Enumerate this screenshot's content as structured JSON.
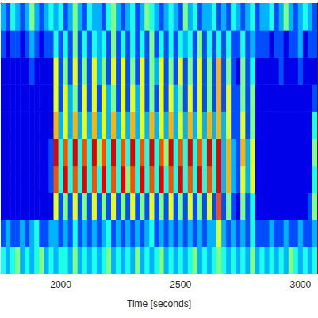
{
  "chart_data": {
    "type": "heatmap",
    "x_label": "Time [seconds]",
    "xlim": [
      1750,
      3070
    ],
    "xticks": [
      2000,
      2500,
      3000
    ],
    "ylim": [
      0,
      10
    ],
    "tick_labels": "x",
    "grid": false,
    "color_range": [
      0,
      10
    ],
    "bins": [
      1750,
      1770,
      1790,
      1810,
      1830,
      1850,
      1870,
      1890,
      1910,
      1930,
      1950,
      1970,
      1990,
      2010,
      2030,
      2050,
      2070,
      2090,
      2110,
      2130,
      2150,
      2170,
      2190,
      2210,
      2230,
      2250,
      2270,
      2290,
      2310,
      2330,
      2350,
      2370,
      2390,
      2410,
      2430,
      2450,
      2470,
      2490,
      2510,
      2530,
      2550,
      2570,
      2590,
      2610,
      2630,
      2650,
      2670,
      2690,
      2710,
      2730,
      2750,
      2770,
      2790,
      2810,
      2830,
      2850,
      2870,
      2890,
      2910,
      2930,
      2950,
      2970,
      2990,
      3010,
      3030,
      3050,
      3070
    ],
    "cells": [
      [
        4,
        3,
        4,
        5,
        3,
        4,
        3,
        4,
        5,
        3,
        4,
        3,
        4,
        4,
        3,
        5,
        3,
        4,
        3,
        4,
        3,
        4,
        5,
        3,
        4,
        3,
        4,
        3,
        5,
        3,
        4,
        3,
        4,
        5,
        3,
        4,
        3,
        4,
        3,
        4,
        5,
        3,
        4,
        3,
        4,
        5,
        4,
        3,
        4,
        3,
        4,
        3,
        5,
        3,
        4,
        3,
        4,
        3,
        4,
        3,
        5,
        4,
        3,
        4,
        3,
        4
      ],
      [
        2,
        3,
        2,
        2,
        3,
        2,
        3,
        4,
        2,
        2,
        3,
        3,
        2,
        3,
        2,
        4,
        2,
        3,
        2,
        3,
        2,
        3,
        4,
        2,
        3,
        2,
        3,
        2,
        3,
        2,
        3,
        4,
        2,
        3,
        2,
        3,
        2,
        3,
        2,
        3,
        2,
        3,
        2,
        3,
        3,
        6,
        3,
        2,
        3,
        2,
        3,
        2,
        4,
        2,
        2,
        2,
        3,
        2,
        2,
        3,
        2,
        2,
        3,
        2,
        2,
        3
      ],
      [
        1,
        1,
        1,
        1,
        1,
        1,
        1,
        1,
        1,
        1,
        1,
        6,
        2,
        5,
        2,
        6,
        2,
        5,
        2,
        6,
        2,
        5,
        2,
        6,
        2,
        5,
        2,
        6,
        2,
        5,
        2,
        6,
        2,
        5,
        2,
        6,
        2,
        5,
        2,
        6,
        2,
        5,
        2,
        6,
        2,
        8,
        2,
        5,
        2,
        1,
        5,
        2,
        4,
        1,
        1,
        1,
        1,
        1,
        1,
        1,
        1,
        1,
        1,
        1,
        2,
        5
      ],
      [
        1,
        1,
        1,
        1,
        1,
        1,
        1,
        1,
        1,
        1,
        2,
        8,
        4,
        9,
        4,
        8,
        4,
        9,
        4,
        8,
        4,
        9,
        4,
        8,
        4,
        9,
        5,
        8,
        4,
        9,
        4,
        8,
        4,
        9,
        4,
        8,
        4,
        9,
        4,
        8,
        4,
        9,
        4,
        8,
        4,
        9,
        3,
        7,
        3,
        2,
        6,
        3,
        6,
        1,
        1,
        1,
        1,
        1,
        1,
        1,
        1,
        1,
        1,
        1,
        1,
        4
      ],
      [
        1,
        1,
        1,
        1,
        1,
        1,
        1,
        1,
        1,
        1,
        2,
        9,
        4,
        8,
        4,
        9,
        4,
        8,
        4,
        9,
        5,
        8,
        4,
        9,
        4,
        8,
        4,
        9,
        4,
        8,
        4,
        9,
        4,
        8,
        5,
        9,
        4,
        8,
        4,
        9,
        4,
        8,
        4,
        9,
        4,
        9,
        3,
        7,
        3,
        2,
        7,
        3,
        6,
        1,
        1,
        1,
        1,
        1,
        1,
        1,
        1,
        1,
        1,
        1,
        1,
        5
      ],
      [
        1,
        1,
        1,
        1,
        1,
        1,
        1,
        1,
        1,
        1,
        1,
        7,
        3,
        6,
        3,
        7,
        3,
        6,
        3,
        7,
        3,
        6,
        3,
        7,
        3,
        6,
        3,
        7,
        3,
        6,
        3,
        7,
        3,
        6,
        3,
        7,
        3,
        6,
        3,
        7,
        3,
        6,
        3,
        7,
        3,
        7,
        3,
        6,
        2,
        2,
        6,
        2,
        5,
        1,
        1,
        1,
        1,
        1,
        1,
        1,
        1,
        1,
        1,
        1,
        1,
        4
      ],
      [
        1,
        1,
        1,
        1,
        1,
        1,
        1,
        1,
        1,
        1,
        1,
        6,
        2,
        6,
        3,
        5,
        2,
        6,
        2,
        6,
        2,
        6,
        3,
        5,
        2,
        6,
        2,
        6,
        3,
        6,
        2,
        5,
        2,
        6,
        2,
        6,
        3,
        5,
        2,
        6,
        2,
        6,
        2,
        5,
        2,
        7,
        2,
        6,
        2,
        2,
        5,
        2,
        5,
        1,
        1,
        1,
        1,
        1,
        1,
        1,
        1,
        1,
        1,
        1,
        1,
        2
      ],
      [
        1,
        1,
        1,
        1,
        1,
        1,
        2,
        1,
        1,
        1,
        1,
        6,
        2,
        5,
        2,
        6,
        2,
        5,
        2,
        6,
        3,
        5,
        2,
        6,
        2,
        6,
        2,
        5,
        2,
        6,
        2,
        5,
        3,
        6,
        2,
        5,
        2,
        6,
        2,
        5,
        2,
        6,
        2,
        5,
        2,
        7,
        2,
        5,
        2,
        1,
        5,
        2,
        4,
        1,
        1,
        1,
        1,
        1,
        2,
        1,
        1,
        1,
        2,
        1,
        1,
        1
      ],
      [
        2,
        1,
        2,
        2,
        1,
        2,
        3,
        2,
        1,
        2,
        2,
        4,
        2,
        4,
        2,
        5,
        2,
        4,
        2,
        4,
        3,
        4,
        2,
        5,
        2,
        4,
        2,
        4,
        2,
        4,
        2,
        5,
        2,
        4,
        2,
        4,
        2,
        4,
        3,
        4,
        2,
        5,
        2,
        4,
        2,
        4,
        2,
        4,
        2,
        2,
        4,
        2,
        3,
        2,
        2,
        2,
        1,
        2,
        2,
        1,
        2,
        2,
        3,
        1,
        2,
        2
      ],
      [
        3,
        2,
        4,
        3,
        2,
        3,
        5,
        3,
        2,
        3,
        4,
        3,
        4,
        2,
        3,
        5,
        3,
        2,
        4,
        3,
        3,
        2,
        4,
        5,
        3,
        2,
        3,
        4,
        2,
        3,
        5,
        4,
        3,
        2,
        3,
        4,
        3,
        2,
        5,
        3,
        4,
        2,
        3,
        3,
        4,
        2,
        3,
        2,
        4,
        3,
        2,
        3,
        4,
        2,
        3,
        3,
        4,
        2,
        3,
        5,
        3,
        2,
        3,
        4,
        3,
        2
      ]
    ]
  }
}
